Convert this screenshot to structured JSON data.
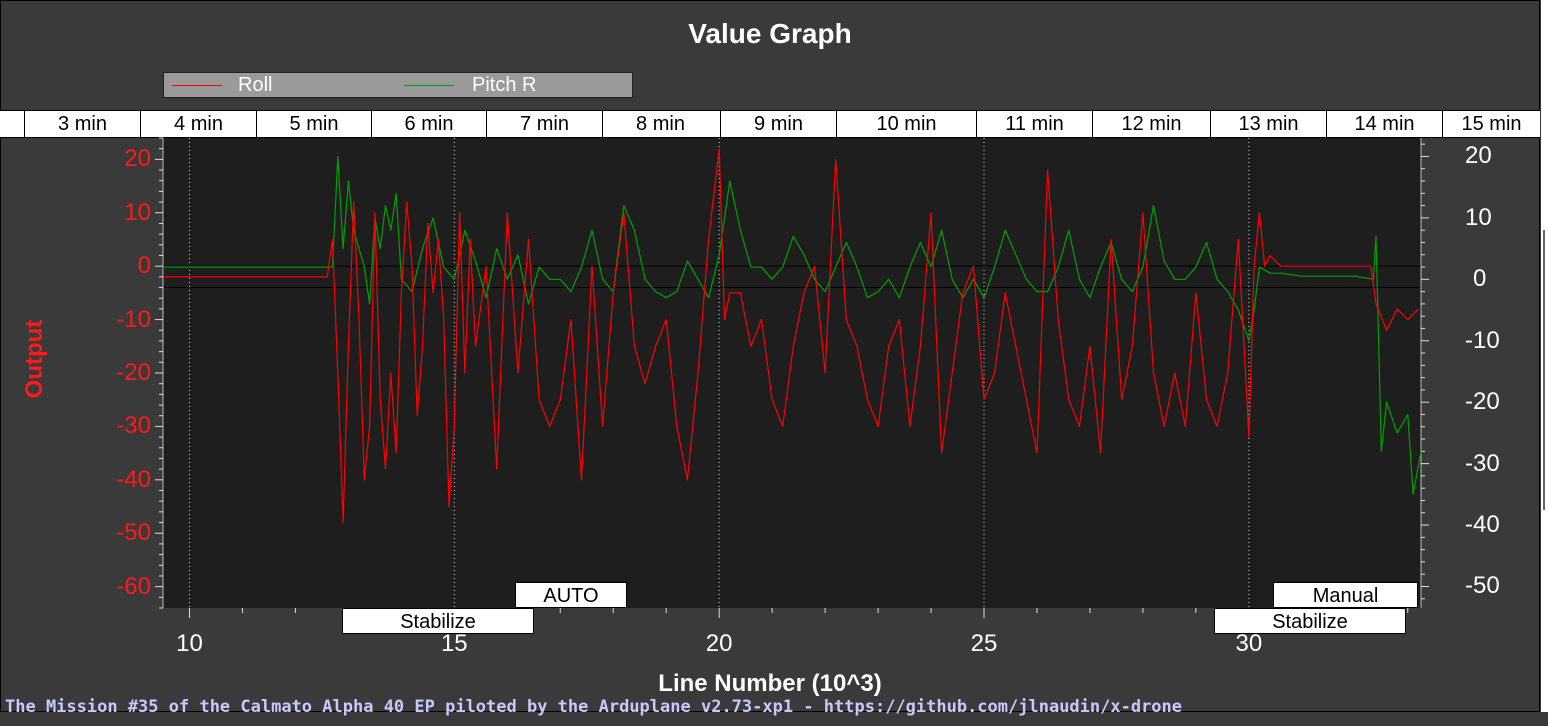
{
  "chart_data": {
    "type": "line",
    "title": "Value Graph",
    "xlabel": "Line Number (10^3)",
    "ylabel_left": "Output",
    "xlim": [
      9.5,
      33.25
    ],
    "ylim_left": [
      -64,
      24
    ],
    "ylim_right": [
      -53.5,
      23
    ],
    "x_ticks": [
      10,
      15,
      20,
      25,
      30
    ],
    "y_ticks_left": [
      20,
      10,
      0,
      -10,
      -20,
      -30,
      -40,
      -50,
      -60
    ],
    "y_ticks_right": [
      20,
      10,
      0,
      -10,
      -20,
      -30,
      -40,
      -50
    ],
    "grid": "dotted vertical at x ticks",
    "reference_lines_left": [
      0,
      -4
    ],
    "legend": "top-left",
    "colors": {
      "roll": "#ff0000",
      "pitch": "#00a000",
      "left_axis": "#ff1a1a",
      "right_axis": "#ffffff"
    },
    "series": [
      {
        "name": "Roll",
        "axis": "left",
        "points": [
          [
            9.5,
            -2
          ],
          [
            12.6,
            -2
          ],
          [
            12.7,
            5
          ],
          [
            12.8,
            -20
          ],
          [
            12.9,
            -48
          ],
          [
            13.0,
            -15
          ],
          [
            13.1,
            12
          ],
          [
            13.2,
            -10
          ],
          [
            13.3,
            -40
          ],
          [
            13.4,
            -30
          ],
          [
            13.5,
            10
          ],
          [
            13.6,
            -25
          ],
          [
            13.7,
            -38
          ],
          [
            13.8,
            -20
          ],
          [
            13.9,
            -35
          ],
          [
            14.0,
            -5
          ],
          [
            14.1,
            12
          ],
          [
            14.2,
            0
          ],
          [
            14.3,
            -28
          ],
          [
            14.4,
            -15
          ],
          [
            14.5,
            8
          ],
          [
            14.6,
            -5
          ],
          [
            14.7,
            5
          ],
          [
            14.8,
            -10
          ],
          [
            14.9,
            -45
          ],
          [
            15.0,
            -30
          ],
          [
            15.1,
            10
          ],
          [
            15.2,
            -20
          ],
          [
            15.3,
            5
          ],
          [
            15.4,
            -15
          ],
          [
            15.6,
            0
          ],
          [
            15.8,
            -38
          ],
          [
            16.0,
            10
          ],
          [
            16.2,
            -20
          ],
          [
            16.4,
            5
          ],
          [
            16.6,
            -25
          ],
          [
            16.8,
            -30
          ],
          [
            17.0,
            -25
          ],
          [
            17.2,
            -10
          ],
          [
            17.4,
            -40
          ],
          [
            17.6,
            0
          ],
          [
            17.8,
            -30
          ],
          [
            18.0,
            -5
          ],
          [
            18.2,
            10
          ],
          [
            18.4,
            -15
          ],
          [
            18.6,
            -22
          ],
          [
            18.8,
            -15
          ],
          [
            19.0,
            -10
          ],
          [
            19.2,
            -30
          ],
          [
            19.4,
            -40
          ],
          [
            19.6,
            -20
          ],
          [
            19.8,
            5
          ],
          [
            20.0,
            22
          ],
          [
            20.1,
            -10
          ],
          [
            20.2,
            -5
          ],
          [
            20.4,
            -5
          ],
          [
            20.6,
            -15
          ],
          [
            20.8,
            -10
          ],
          [
            21.0,
            -25
          ],
          [
            21.2,
            -30
          ],
          [
            21.4,
            -15
          ],
          [
            21.6,
            -5
          ],
          [
            21.8,
            0
          ],
          [
            22.0,
            -20
          ],
          [
            22.2,
            20
          ],
          [
            22.4,
            -10
          ],
          [
            22.6,
            -15
          ],
          [
            22.8,
            -25
          ],
          [
            23.0,
            -30
          ],
          [
            23.2,
            -15
          ],
          [
            23.4,
            -10
          ],
          [
            23.6,
            -30
          ],
          [
            23.8,
            -15
          ],
          [
            24.0,
            10
          ],
          [
            24.2,
            -35
          ],
          [
            24.4,
            -20
          ],
          [
            24.6,
            -5
          ],
          [
            24.8,
            0
          ],
          [
            25.0,
            -25
          ],
          [
            25.2,
            -20
          ],
          [
            25.4,
            -5
          ],
          [
            25.6,
            -15
          ],
          [
            25.8,
            -25
          ],
          [
            26.0,
            -35
          ],
          [
            26.2,
            18
          ],
          [
            26.4,
            -10
          ],
          [
            26.6,
            -25
          ],
          [
            26.8,
            -30
          ],
          [
            27.0,
            -15
          ],
          [
            27.2,
            -35
          ],
          [
            27.4,
            5
          ],
          [
            27.6,
            -25
          ],
          [
            27.8,
            -15
          ],
          [
            28.0,
            10
          ],
          [
            28.2,
            -20
          ],
          [
            28.4,
            -30
          ],
          [
            28.6,
            -20
          ],
          [
            28.8,
            -30
          ],
          [
            29.0,
            -5
          ],
          [
            29.2,
            -25
          ],
          [
            29.4,
            -30
          ],
          [
            29.6,
            -20
          ],
          [
            29.8,
            5
          ],
          [
            30.0,
            -32
          ],
          [
            30.1,
            0
          ],
          [
            30.2,
            10
          ],
          [
            30.3,
            0
          ],
          [
            30.4,
            2
          ],
          [
            30.6,
            0
          ],
          [
            31.0,
            0
          ],
          [
            32.0,
            0
          ],
          [
            32.3,
            0
          ],
          [
            32.4,
            -7
          ],
          [
            32.6,
            -12
          ],
          [
            32.8,
            -8
          ],
          [
            33.0,
            -10
          ],
          [
            33.2,
            -8
          ]
        ]
      },
      {
        "name": "Pitch R",
        "axis": "right",
        "points": [
          [
            9.5,
            2
          ],
          [
            12.7,
            2
          ],
          [
            12.8,
            20
          ],
          [
            12.9,
            5
          ],
          [
            13.0,
            16
          ],
          [
            13.1,
            8
          ],
          [
            13.2,
            5
          ],
          [
            13.3,
            2
          ],
          [
            13.4,
            -4
          ],
          [
            13.5,
            10
          ],
          [
            13.6,
            5
          ],
          [
            13.7,
            12
          ],
          [
            13.8,
            8
          ],
          [
            13.9,
            14
          ],
          [
            14.0,
            0
          ],
          [
            14.2,
            -2
          ],
          [
            14.4,
            5
          ],
          [
            14.6,
            10
          ],
          [
            14.8,
            2
          ],
          [
            15.0,
            0
          ],
          [
            15.2,
            8
          ],
          [
            15.4,
            3
          ],
          [
            15.6,
            -3
          ],
          [
            15.8,
            5
          ],
          [
            16.0,
            0
          ],
          [
            16.2,
            4
          ],
          [
            16.4,
            -4
          ],
          [
            16.6,
            2
          ],
          [
            16.8,
            0
          ],
          [
            17.0,
            0
          ],
          [
            17.2,
            -2
          ],
          [
            17.4,
            2
          ],
          [
            17.6,
            8
          ],
          [
            17.8,
            0
          ],
          [
            18.0,
            -2
          ],
          [
            18.2,
            12
          ],
          [
            18.4,
            8
          ],
          [
            18.6,
            0
          ],
          [
            18.8,
            -2
          ],
          [
            19.0,
            -3
          ],
          [
            19.2,
            -2
          ],
          [
            19.4,
            3
          ],
          [
            19.6,
            0
          ],
          [
            19.8,
            -3
          ],
          [
            20.0,
            4
          ],
          [
            20.2,
            16
          ],
          [
            20.4,
            8
          ],
          [
            20.6,
            2
          ],
          [
            20.8,
            2
          ],
          [
            21.0,
            0
          ],
          [
            21.2,
            2
          ],
          [
            21.4,
            7
          ],
          [
            21.6,
            4
          ],
          [
            21.8,
            0
          ],
          [
            22.0,
            -2
          ],
          [
            22.2,
            2
          ],
          [
            22.4,
            6
          ],
          [
            22.6,
            2
          ],
          [
            22.8,
            -3
          ],
          [
            23.0,
            -2
          ],
          [
            23.2,
            0
          ],
          [
            23.4,
            -3
          ],
          [
            23.6,
            2
          ],
          [
            23.8,
            6
          ],
          [
            24.0,
            2
          ],
          [
            24.2,
            8
          ],
          [
            24.4,
            0
          ],
          [
            24.6,
            -3
          ],
          [
            24.8,
            0
          ],
          [
            25.0,
            -3
          ],
          [
            25.2,
            2
          ],
          [
            25.4,
            8
          ],
          [
            25.6,
            4
          ],
          [
            25.8,
            0
          ],
          [
            26.0,
            -2
          ],
          [
            26.2,
            -2
          ],
          [
            26.4,
            2
          ],
          [
            26.6,
            8
          ],
          [
            26.8,
            0
          ],
          [
            27.0,
            -3
          ],
          [
            27.2,
            2
          ],
          [
            27.4,
            6
          ],
          [
            27.6,
            0
          ],
          [
            27.8,
            -2
          ],
          [
            28.0,
            2
          ],
          [
            28.2,
            12
          ],
          [
            28.4,
            3
          ],
          [
            28.6,
            0
          ],
          [
            28.8,
            0
          ],
          [
            29.0,
            2
          ],
          [
            29.2,
            6
          ],
          [
            29.4,
            0
          ],
          [
            29.6,
            -2
          ],
          [
            29.8,
            -5
          ],
          [
            30.0,
            -10
          ],
          [
            30.1,
            -5
          ],
          [
            30.2,
            2
          ],
          [
            30.4,
            1
          ],
          [
            30.6,
            1
          ],
          [
            31.0,
            0.5
          ],
          [
            32.0,
            0.5
          ],
          [
            32.35,
            0
          ],
          [
            32.4,
            7
          ],
          [
            32.45,
            -10
          ],
          [
            32.5,
            -28
          ],
          [
            32.6,
            -20
          ],
          [
            32.8,
            -25
          ],
          [
            33.0,
            -22
          ],
          [
            33.1,
            -35
          ],
          [
            33.25,
            -28
          ]
        ]
      }
    ]
  },
  "title": "Value Graph",
  "legend": {
    "roll": "Roll",
    "pitch": "Pitch R"
  },
  "time_labels": [
    "3 min",
    "4 min",
    "5 min",
    "6 min",
    "7 min",
    "8 min",
    "9 min",
    "10 min",
    "11 min",
    "12 min",
    "13 min",
    "14 min",
    "15 min"
  ],
  "modes": [
    {
      "label": "Stabilize"
    },
    {
      "label": "AUTO"
    },
    {
      "label": "Stabilize"
    },
    {
      "label": "Manual"
    }
  ],
  "footer": "The Mission #35 of the Calmato Alpha 40 EP piloted by the Arduplane v2.73-xp1 - https://github.com/jlnaudin/x-drone"
}
